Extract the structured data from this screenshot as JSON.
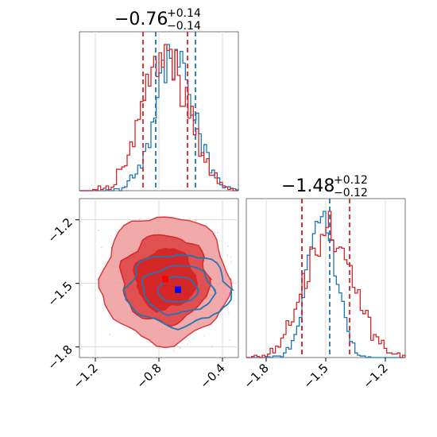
{
  "chart_data": [
    {
      "type": "step-histogram",
      "panel": "marginal-x",
      "title_value": "−0.76",
      "title_plus": "+0.14",
      "title_minus": "−0.14",
      "xlim": [
        -1.3,
        -0.3
      ],
      "series": [
        {
          "color": "#1f77b4",
          "center": -0.7,
          "sigma": 0.12,
          "quantiles": [
            -0.82,
            -0.57
          ]
        },
        {
          "color": "#d62728",
          "center": -0.76,
          "sigma": 0.14,
          "quantiles": [
            -0.9,
            -0.62
          ]
        }
      ]
    },
    {
      "type": "step-histogram",
      "panel": "marginal-y",
      "title_value": "−1.48",
      "title_plus": "+0.12",
      "title_minus": "−0.12",
      "xlim": [
        -1.9,
        -1.1
      ],
      "xticks": [
        "−1.8",
        "−1.5",
        "−1.2"
      ],
      "series": [
        {
          "color": "#1f77b4",
          "center": -1.52,
          "sigma": 0.07,
          "quantiles": [
            -1.62,
            -1.48
          ]
        },
        {
          "color": "#d62728",
          "center": -1.48,
          "sigma": 0.12,
          "quantiles": [
            -1.62,
            -1.38
          ]
        }
      ]
    },
    {
      "type": "contour",
      "panel": "joint",
      "xlim": [
        -1.3,
        -0.3
      ],
      "ylim": [
        -1.85,
        -1.1
      ],
      "xticks": [
        "−1.2",
        "−0.8",
        "−0.4"
      ],
      "yticks": [
        "−1.2",
        "−1.5",
        "−1.8"
      ],
      "series": [
        {
          "color": "#1f77b4",
          "mean": [
            -0.68,
            -1.53
          ],
          "marker": "square"
        },
        {
          "color": "#d62728",
          "mean": [
            -0.76,
            -1.48
          ],
          "marker": "square"
        }
      ]
    }
  ]
}
